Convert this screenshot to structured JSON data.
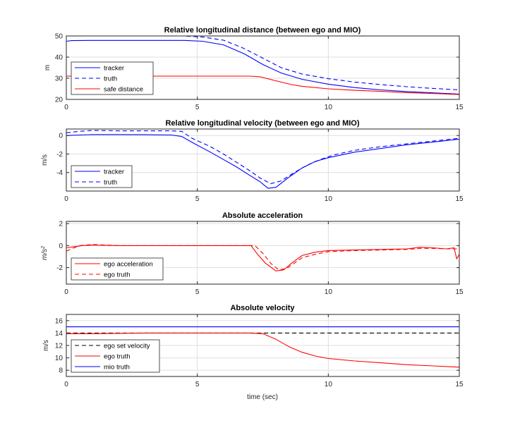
{
  "chart_data": [
    {
      "type": "line",
      "title": "Relative longitudinal distance (between ego and MIO)",
      "xlabel": "",
      "ylabel": "m",
      "xlim": [
        0,
        15
      ],
      "ylim": [
        20,
        50
      ],
      "xticks": [
        0,
        5,
        10,
        15
      ],
      "yticks": [
        20,
        30,
        40,
        50
      ],
      "grid": true,
      "legend_position": "bottom-left",
      "series": [
        {
          "name": "tracker",
          "color": "#0000ff",
          "dash": "solid",
          "x": [
            0,
            0.2,
            1,
            3,
            4.5,
            5.2,
            6,
            6.8,
            7.5,
            8.2,
            9,
            10,
            11,
            12,
            13,
            14,
            15
          ],
          "y": [
            47.5,
            47.8,
            47.9,
            47.9,
            47.9,
            47.5,
            45.8,
            41.5,
            36.5,
            32.5,
            29.5,
            27.2,
            25.6,
            24.5,
            23.7,
            23.1,
            22.5
          ]
        },
        {
          "name": "truth",
          "color": "#0000ff",
          "dash": "dashed",
          "x": [
            0,
            1,
            3,
            4.5,
            5.2,
            6,
            6.8,
            7.5,
            8.2,
            9,
            10,
            11,
            12,
            13,
            14,
            15
          ],
          "y": [
            50,
            50,
            50,
            50,
            49.5,
            48,
            44,
            39.5,
            35,
            32,
            29.8,
            28.2,
            27,
            26,
            25.2,
            24.5
          ]
        },
        {
          "name": "safe distance",
          "color": "#ff0000",
          "dash": "solid",
          "x": [
            0,
            1,
            3,
            5,
            7,
            7.4,
            8,
            8.6,
            9,
            10,
            11,
            12,
            13,
            14,
            15
          ],
          "y": [
            31,
            31,
            31,
            31,
            31,
            30.7,
            28.8,
            27,
            26.2,
            25,
            24.3,
            23.8,
            23.2,
            22.8,
            22.3
          ]
        }
      ]
    },
    {
      "type": "line",
      "title": "Relative longitudinal velocity (between ego and MIO)",
      "xlabel": "",
      "ylabel": "m/s",
      "xlim": [
        0,
        15
      ],
      "ylim": [
        -6,
        0.7
      ],
      "xticks": [
        0,
        5,
        10,
        15
      ],
      "yticks": [
        -4,
        -2,
        0
      ],
      "grid": true,
      "legend_position": "bottom-left",
      "series": [
        {
          "name": "tracker",
          "color": "#0000ff",
          "dash": "solid",
          "x": [
            0,
            0.5,
            1,
            2,
            3,
            4,
            4.4,
            4.9,
            5.5,
            6,
            6.5,
            7,
            7.4,
            7.7,
            8,
            8.5,
            9,
            9.5,
            10,
            11,
            12,
            13,
            14,
            15
          ],
          "y": [
            0,
            0.05,
            0.1,
            0.1,
            0.08,
            0.05,
            -0.1,
            -0.9,
            -1.8,
            -2.6,
            -3.4,
            -4.3,
            -5,
            -5.7,
            -5.6,
            -4.5,
            -3.5,
            -2.8,
            -2.4,
            -1.8,
            -1.4,
            -1.0,
            -0.7,
            -0.4
          ]
        },
        {
          "name": "truth",
          "color": "#0000ff",
          "dash": "dashed",
          "x": [
            0,
            0.5,
            1,
            2,
            3,
            4,
            4.4,
            4.8,
            5.5,
            6,
            6.5,
            7,
            7.4,
            7.8,
            8.2,
            8.7,
            9.2,
            9.7,
            10.2,
            11,
            12,
            13,
            14,
            15
          ],
          "y": [
            0.3,
            0.45,
            0.55,
            0.5,
            0.5,
            0.5,
            0.45,
            -0.3,
            -1.2,
            -2.0,
            -2.9,
            -3.8,
            -4.6,
            -5.2,
            -4.9,
            -4.0,
            -3.2,
            -2.6,
            -2.1,
            -1.6,
            -1.2,
            -0.9,
            -0.6,
            -0.3
          ]
        }
      ]
    },
    {
      "type": "line",
      "title": "Absolute acceleration",
      "xlabel": "",
      "ylabel": "m/s^2",
      "xlim": [
        0,
        15
      ],
      "ylim": [
        -3.5,
        2.2
      ],
      "xticks": [
        0,
        5,
        10,
        15
      ],
      "yticks": [
        -2,
        0,
        2
      ],
      "grid": true,
      "legend_position": "bottom-left",
      "series": [
        {
          "name": "ego acceleration",
          "color": "#ff0000",
          "dash": "solid",
          "x": [
            0,
            0.3,
            0.6,
            1,
            2,
            3,
            5,
            6,
            7,
            7.05,
            7.3,
            7.6,
            8,
            8.3,
            8.6,
            9,
            9.5,
            10,
            11,
            12,
            13,
            13.5,
            14,
            14.5,
            14.8,
            14.9,
            15
          ],
          "y": [
            -0.2,
            -0.1,
            0,
            0.05,
            0,
            0,
            0,
            0,
            0,
            0,
            -0.8,
            -1.6,
            -2.3,
            -2.2,
            -1.6,
            -0.9,
            -0.6,
            -0.45,
            -0.4,
            -0.35,
            -0.3,
            -0.15,
            -0.2,
            -0.3,
            -0.2,
            -1.2,
            -0.8
          ]
        },
        {
          "name": "ego truth",
          "color": "#ff0000",
          "dash": "dashed",
          "x": [
            0,
            0.2,
            0.5,
            1,
            2,
            3,
            5,
            6,
            7,
            7.2,
            7.5,
            7.8,
            8.1,
            8.4,
            8.7,
            9,
            9.5,
            10,
            11,
            12,
            13,
            13.5,
            14,
            14.5,
            15
          ],
          "y": [
            -0.5,
            -0.3,
            0,
            0.1,
            0,
            0,
            0,
            0,
            0,
            0,
            -0.7,
            -1.6,
            -2.2,
            -2.1,
            -1.6,
            -1.1,
            -0.8,
            -0.55,
            -0.45,
            -0.4,
            -0.35,
            -0.25,
            -0.25,
            -0.3,
            -0.3
          ]
        }
      ]
    },
    {
      "type": "line",
      "title": "Absolute velocity",
      "xlabel": "time (sec)",
      "ylabel": "m/s",
      "xlim": [
        0,
        15
      ],
      "ylim": [
        7,
        17
      ],
      "xticks": [
        0,
        5,
        10,
        15
      ],
      "yticks": [
        8,
        10,
        12,
        14,
        16
      ],
      "grid": true,
      "legend_position": "bottom-left",
      "series": [
        {
          "name": "ego set velocity",
          "color": "#000000",
          "dash": "dashed",
          "x": [
            0,
            15
          ],
          "y": [
            14,
            14
          ]
        },
        {
          "name": "ego truth",
          "color": "#ff0000",
          "dash": "solid",
          "x": [
            0,
            1,
            3,
            5,
            7,
            7.5,
            8,
            8.5,
            9,
            9.5,
            10,
            11,
            12,
            13,
            14,
            15
          ],
          "y": [
            13.9,
            13.9,
            14,
            14,
            14,
            13.9,
            13.0,
            11.8,
            10.9,
            10.3,
            9.9,
            9.5,
            9.2,
            8.9,
            8.7,
            8.5
          ]
        },
        {
          "name": "mio truth",
          "color": "#0000ff",
          "dash": "solid",
          "x": [
            0,
            15
          ],
          "y": [
            15,
            15
          ]
        }
      ]
    }
  ]
}
